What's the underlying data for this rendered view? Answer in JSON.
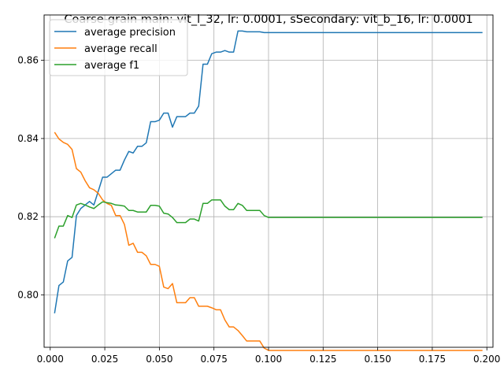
{
  "chart_data": {
    "type": "line",
    "title": "Coarse-grain main: vit_l_32, lr: 0.0001, sSecondary: vit_b_16, lr: 0.0001",
    "xlabel": "",
    "ylabel": "",
    "xlim": [
      -0.0028,
      0.2028
    ],
    "ylim": [
      0.7866,
      0.8716
    ],
    "xticks": [
      0.0,
      0.025,
      0.05,
      0.075,
      0.1,
      0.125,
      0.15,
      0.175,
      0.2
    ],
    "xtick_labels": [
      "0.000",
      "0.025",
      "0.050",
      "0.075",
      "0.100",
      "0.125",
      "0.150",
      "0.175",
      "0.200"
    ],
    "yticks": [
      0.8,
      0.82,
      0.84,
      0.86
    ],
    "ytick_labels": [
      "0.80",
      "0.82",
      "0.84",
      "0.86"
    ],
    "grid": true,
    "legend_position": "top-left",
    "x": [
      0.002,
      0.004,
      0.006,
      0.008,
      0.01,
      0.012,
      0.014,
      0.016,
      0.018,
      0.02,
      0.022,
      0.024,
      0.026,
      0.028,
      0.03,
      0.032,
      0.034,
      0.036,
      0.038,
      0.04,
      0.042,
      0.044,
      0.046,
      0.048,
      0.05,
      0.052,
      0.054,
      0.056,
      0.058,
      0.06,
      0.062,
      0.064,
      0.066,
      0.068,
      0.07,
      0.072,
      0.074,
      0.076,
      0.078,
      0.08,
      0.082,
      0.084,
      0.086,
      0.088,
      0.09,
      0.092,
      0.094,
      0.096,
      0.098,
      0.1,
      0.198
    ],
    "series": [
      {
        "name": "average precision",
        "color": "#1f77b4",
        "values": [
          0.7953,
          0.8024,
          0.8033,
          0.8087,
          0.8096,
          0.8203,
          0.8221,
          0.823,
          0.8239,
          0.823,
          0.8265,
          0.8301,
          0.8301,
          0.831,
          0.8319,
          0.8319,
          0.8345,
          0.8367,
          0.8363,
          0.838,
          0.838,
          0.8389,
          0.8443,
          0.8443,
          0.8447,
          0.8465,
          0.8465,
          0.8429,
          0.8456,
          0.8456,
          0.8456,
          0.8465,
          0.8465,
          0.8483,
          0.859,
          0.859,
          0.8617,
          0.8621,
          0.8621,
          0.8625,
          0.8621,
          0.8621,
          0.8675,
          0.8675,
          0.8673,
          0.8673,
          0.8673,
          0.8673,
          0.8671,
          0.8671,
          0.8671
        ]
      },
      {
        "name": "average recall",
        "color": "#ff7f0e",
        "values": [
          0.8416,
          0.8399,
          0.839,
          0.8385,
          0.8372,
          0.8323,
          0.8314,
          0.8292,
          0.8274,
          0.8269,
          0.826,
          0.8243,
          0.8234,
          0.8229,
          0.8203,
          0.8203,
          0.818,
          0.8127,
          0.8132,
          0.8109,
          0.8109,
          0.81,
          0.8078,
          0.8078,
          0.8073,
          0.802,
          0.8016,
          0.8029,
          0.798,
          0.798,
          0.798,
          0.7993,
          0.7993,
          0.7971,
          0.7971,
          0.7971,
          0.7967,
          0.7962,
          0.7962,
          0.7936,
          0.7918,
          0.7918,
          0.7909,
          0.7896,
          0.7882,
          0.7882,
          0.7882,
          0.7882,
          0.7864,
          0.7858,
          0.7858
        ]
      },
      {
        "name": "average f1",
        "color": "#2ca02c",
        "values": [
          0.8145,
          0.8176,
          0.8176,
          0.8203,
          0.8198,
          0.823,
          0.8234,
          0.823,
          0.8225,
          0.8221,
          0.823,
          0.8238,
          0.8236,
          0.8234,
          0.823,
          0.8229,
          0.8227,
          0.8216,
          0.8216,
          0.8212,
          0.8212,
          0.8212,
          0.8229,
          0.8229,
          0.8227,
          0.8209,
          0.8207,
          0.8198,
          0.8185,
          0.8185,
          0.8185,
          0.8194,
          0.8194,
          0.8189,
          0.8234,
          0.8234,
          0.8243,
          0.8243,
          0.8243,
          0.8227,
          0.8218,
          0.8218,
          0.8234,
          0.8229,
          0.8216,
          0.8216,
          0.8216,
          0.8216,
          0.8203,
          0.8198,
          0.8198
        ]
      }
    ]
  }
}
